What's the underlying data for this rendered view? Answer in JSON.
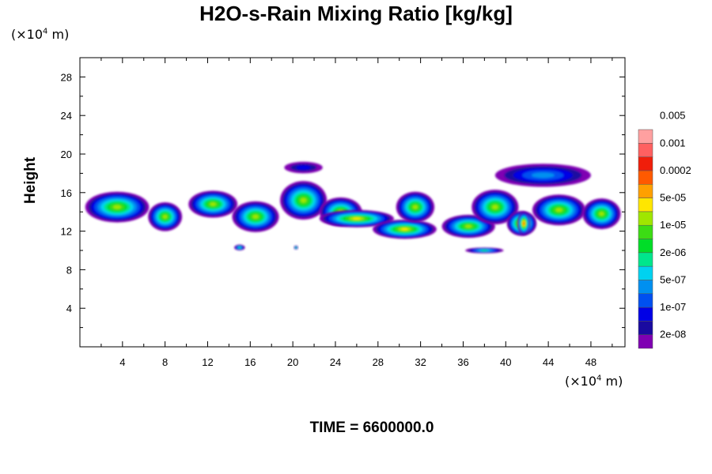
{
  "chart_data": {
    "type": "heatmap",
    "title": "H2O-s-Rain Mixing Ratio [kg/kg]",
    "ylabel": "Height",
    "x_unit": "(×10⁴ m)",
    "y_unit": "(×10⁴ m)",
    "x_unit_base": "(×10",
    "x_unit_exp": "4",
    "x_unit_tail": " m)",
    "footer": "TIME = 6600000.0",
    "xlim": [
      0,
      51.2
    ],
    "ylim": [
      0,
      30
    ],
    "x_ticks": [
      4,
      8,
      12,
      16,
      20,
      24,
      28,
      32,
      36,
      40,
      44,
      48
    ],
    "y_ticks": [
      4,
      8,
      12,
      16,
      20,
      24,
      28
    ],
    "x_tick_labels": [
      "4",
      "8",
      "12",
      "16",
      "20",
      "24",
      "28",
      "32",
      "36",
      "40",
      "44",
      "48"
    ],
    "y_tick_labels": [
      "4",
      "8",
      "12",
      "16",
      "20",
      "24",
      "28"
    ],
    "colorbar": {
      "colors": [
        "#7f00b2",
        "#1a0aa0",
        "#0000e6",
        "#0050f0",
        "#0090f0",
        "#00d2f0",
        "#00e68c",
        "#00dd28",
        "#3cdc14",
        "#a0e600",
        "#ffe600",
        "#ffa000",
        "#ff5a00",
        "#f01e0a",
        "#ff6060",
        "#ffa0a0"
      ],
      "labels": [
        "2e-08",
        "1e-07",
        "5e-07",
        "2e-06",
        "1e-05",
        "5e-05",
        "0.0002",
        "0.001",
        "0.005"
      ]
    },
    "regions": [
      {
        "level": 9,
        "cx": 3.5,
        "cy": 14.5,
        "rx": 3.0,
        "ry": 1.6
      },
      {
        "level": 9,
        "cx": 8.0,
        "cy": 13.5,
        "rx": 1.6,
        "ry": 1.5
      },
      {
        "level": 9,
        "cx": 12.5,
        "cy": 14.8,
        "rx": 2.3,
        "ry": 1.4
      },
      {
        "level": 9,
        "cx": 16.5,
        "cy": 13.5,
        "rx": 2.2,
        "ry": 1.6
      },
      {
        "level": 9,
        "cx": 21.0,
        "cy": 15.2,
        "rx": 2.2,
        "ry": 2.0
      },
      {
        "level": 9,
        "cx": 24.5,
        "cy": 14.0,
        "rx": 2.0,
        "ry": 1.5
      },
      {
        "level": 10,
        "cx": 26.0,
        "cy": 13.3,
        "rx": 3.5,
        "ry": 0.9
      },
      {
        "level": 10,
        "cx": 30.5,
        "cy": 12.2,
        "rx": 3.0,
        "ry": 1.0
      },
      {
        "level": 9,
        "cx": 31.5,
        "cy": 14.5,
        "rx": 1.8,
        "ry": 1.6
      },
      {
        "level": 9,
        "cx": 36.5,
        "cy": 12.5,
        "rx": 2.5,
        "ry": 1.2
      },
      {
        "level": 9,
        "cx": 39.0,
        "cy": 14.5,
        "rx": 2.2,
        "ry": 1.8
      },
      {
        "level": 11,
        "cx": 41.5,
        "cy": 12.8,
        "rx": 1.4,
        "ry": 1.3
      },
      {
        "level": 12,
        "cx": 41.7,
        "cy": 12.8,
        "rx": 0.6,
        "ry": 1.2
      },
      {
        "level": 9,
        "cx": 45.0,
        "cy": 14.2,
        "rx": 2.5,
        "ry": 1.6
      },
      {
        "level": 9,
        "cx": 49.0,
        "cy": 13.8,
        "rx": 1.8,
        "ry": 1.6
      },
      {
        "level": 4,
        "cx": 43.5,
        "cy": 17.8,
        "rx": 4.5,
        "ry": 1.2
      },
      {
        "level": 2,
        "cx": 21.0,
        "cy": 18.6,
        "rx": 1.8,
        "ry": 0.6
      },
      {
        "level": 6,
        "cx": 38.0,
        "cy": 10.0,
        "rx": 1.8,
        "ry": 0.3
      },
      {
        "level": 6,
        "cx": 15.0,
        "cy": 10.3,
        "rx": 0.5,
        "ry": 0.3
      },
      {
        "level": 6,
        "cx": 20.3,
        "cy": 10.3,
        "rx": 0.2,
        "ry": 0.2
      }
    ]
  }
}
